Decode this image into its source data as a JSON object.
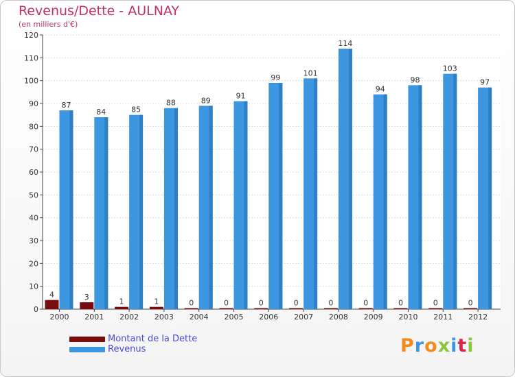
{
  "title": "Revenus/Dette - AULNAY",
  "subtitle": "(en milliers d'€)",
  "legend": {
    "debt_label": "Montant de la Dette",
    "revenue_label": "Revenus"
  },
  "logo": [
    "P",
    "r",
    "o",
    "x",
    "i",
    "t",
    "i"
  ],
  "colors": {
    "debt": "#7a0c0c",
    "revenue": "#3d96e0",
    "title": "#c0335a",
    "legend_text": "#4a4ad8",
    "logo": [
      "#f28c1c",
      "#3d96e0",
      "#f28c1c",
      "#8cc63f",
      "#3d96e0",
      "#e0234b",
      "#8cc63f"
    ]
  },
  "chart_data": {
    "type": "bar",
    "title": "Revenus/Dette - AULNAY",
    "ylabel": "(en milliers d'€)",
    "xlabel": "",
    "ylim": [
      0,
      120
    ],
    "yticks": [
      0,
      10,
      20,
      30,
      40,
      50,
      60,
      70,
      80,
      90,
      100,
      110,
      120
    ],
    "categories": [
      "2000",
      "2001",
      "2002",
      "2003",
      "2004",
      "2005",
      "2006",
      "2007",
      "2008",
      "2009",
      "2010",
      "2011",
      "2012"
    ],
    "series": [
      {
        "name": "Montant de la Dette",
        "values": [
          4,
          3,
          1,
          1,
          0,
          0,
          0,
          0,
          0,
          0,
          0,
          0,
          0
        ]
      },
      {
        "name": "Revenus",
        "values": [
          87,
          84,
          85,
          88,
          89,
          91,
          99,
          101,
          114,
          94,
          98,
          103,
          97
        ]
      }
    ]
  }
}
